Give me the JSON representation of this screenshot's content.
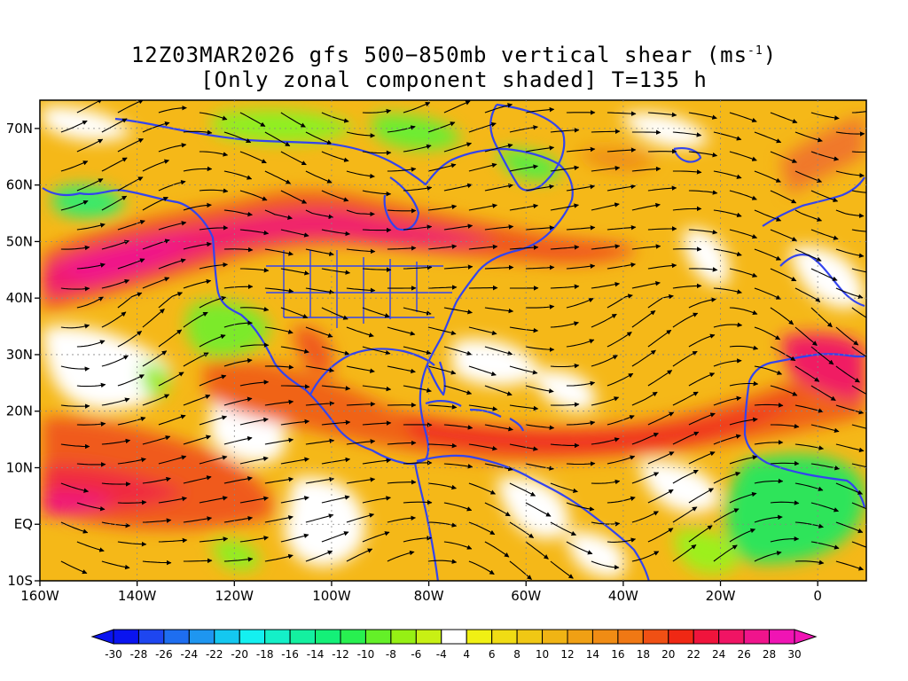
{
  "title": {
    "line1_prefix": "12Z03MAR2026 gfs 500−850mb vertical shear (ms",
    "line1_sup": "-1",
    "line1_suffix": ")",
    "line2": "[Only zonal component shaded] T=135 h"
  },
  "map": {
    "lon_range": [
      -160,
      10
    ],
    "lat_range": [
      -10,
      75
    ],
    "lat_labels": [
      {
        "value": 70,
        "text": "70N"
      },
      {
        "value": 60,
        "text": "60N"
      },
      {
        "value": 50,
        "text": "50N"
      },
      {
        "value": 40,
        "text": "40N"
      },
      {
        "value": 30,
        "text": "30N"
      },
      {
        "value": 20,
        "text": "20N"
      },
      {
        "value": 10,
        "text": "10N"
      },
      {
        "value": 0,
        "text": "EQ"
      },
      {
        "value": -10,
        "text": "10S"
      }
    ],
    "lon_labels": [
      {
        "value": -160,
        "text": "160W"
      },
      {
        "value": -140,
        "text": "140W"
      },
      {
        "value": -120,
        "text": "120W"
      },
      {
        "value": -100,
        "text": "100W"
      },
      {
        "value": -80,
        "text": "80W"
      },
      {
        "value": -60,
        "text": "60W"
      },
      {
        "value": -40,
        "text": "40W"
      },
      {
        "value": -20,
        "text": "20W"
      },
      {
        "value": 0,
        "text": "0"
      }
    ],
    "coastline_color": "#3344ee",
    "streamline_color": "#000000"
  },
  "colorbar": {
    "labels": [
      "-30",
      "-28",
      "-26",
      "-24",
      "-22",
      "-20",
      "-18",
      "-16",
      "-14",
      "-12",
      "-10",
      "-8",
      "-6",
      "-4",
      "4",
      "6",
      "8",
      "10",
      "12",
      "14",
      "16",
      "18",
      "20",
      "22",
      "24",
      "26",
      "28",
      "30"
    ],
    "colors": [
      "#0a14f0",
      "#1e46f0",
      "#1e6ef0",
      "#1e96f0",
      "#14c8f0",
      "#14f0f0",
      "#14f0c8",
      "#14f0a0",
      "#14f078",
      "#28f050",
      "#64f028",
      "#96f014",
      "#c8f014",
      "#ffffff",
      "#f0f014",
      "#f0dc14",
      "#f0c814",
      "#f0b414",
      "#f0a014",
      "#f08c14",
      "#f07814",
      "#f05014",
      "#f02814",
      "#f0143c",
      "#f01464",
      "#f0148c",
      "#f014b4"
    ]
  }
}
